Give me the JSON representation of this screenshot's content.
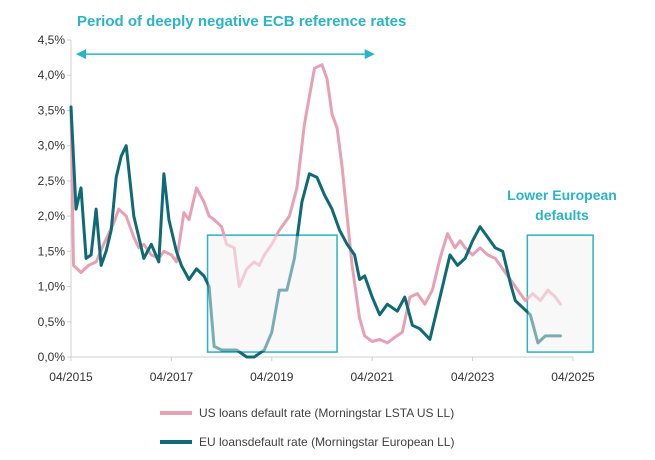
{
  "chart_data": {
    "type": "line",
    "title": "",
    "xlabel": "",
    "ylabel": "",
    "x_tick_labels": [
      "04/2015",
      "04/2017",
      "04/2019",
      "04/2021",
      "04/2023",
      "04/2025"
    ],
    "y_tick_labels": [
      "0,0%",
      "0,5%",
      "1,0%",
      "1,5%",
      "2,0%",
      "2,5%",
      "3,0%",
      "3,5%",
      "4,0%",
      "4,5%"
    ],
    "ylim": [
      0,
      4.5
    ],
    "xlim": [
      2015.25,
      2025.25
    ],
    "legend_position": "bottom",
    "series": [
      {
        "name": "US loans default rate (Morningstar LSTA US LL)",
        "color": "#e8a0b4",
        "x": [
          2015.25,
          2015.3,
          2015.45,
          2015.6,
          2015.75,
          2015.9,
          2016.0,
          2016.1,
          2016.2,
          2016.35,
          2016.5,
          2016.6,
          2016.7,
          2016.85,
          2017.0,
          2017.1,
          2017.25,
          2017.35,
          2017.5,
          2017.6,
          2017.75,
          2017.9,
          2018.0,
          2018.1,
          2018.25,
          2018.35,
          2018.5,
          2018.6,
          2018.75,
          2018.9,
          2019.0,
          2019.1,
          2019.25,
          2019.4,
          2019.6,
          2019.75,
          2019.9,
          2020.0,
          2020.1,
          2020.25,
          2020.35,
          2020.45,
          2020.55,
          2020.65,
          2020.75,
          2020.85,
          2021.0,
          2021.1,
          2021.25,
          2021.4,
          2021.55,
          2021.7,
          2021.85,
          2022.0,
          2022.15,
          2022.3,
          2022.45,
          2022.6,
          2022.75,
          2022.9,
          2023.0,
          2023.1,
          2023.25,
          2023.4,
          2023.55,
          2023.7,
          2023.85,
          2024.0,
          2024.15,
          2024.3,
          2024.45,
          2024.6,
          2024.75,
          2024.9,
          2025.0
        ],
        "values": [
          3.5,
          1.3,
          1.2,
          1.3,
          1.35,
          1.6,
          1.75,
          1.9,
          2.1,
          2.0,
          1.7,
          1.55,
          1.6,
          1.45,
          1.4,
          1.5,
          1.45,
          1.35,
          2.05,
          1.95,
          2.4,
          2.2,
          2.0,
          1.95,
          1.85,
          1.6,
          1.55,
          1.0,
          1.25,
          1.35,
          1.3,
          1.45,
          1.6,
          1.8,
          2.0,
          2.4,
          3.3,
          3.7,
          4.1,
          4.15,
          3.95,
          3.45,
          3.25,
          2.7,
          2.0,
          1.3,
          0.55,
          0.3,
          0.22,
          0.25,
          0.2,
          0.28,
          0.35,
          0.85,
          0.9,
          0.75,
          0.95,
          1.4,
          1.75,
          1.55,
          1.65,
          1.55,
          1.45,
          1.55,
          1.45,
          1.4,
          1.25,
          1.1,
          0.95,
          0.8,
          0.9,
          0.8,
          0.95,
          0.85,
          0.75
        ]
      },
      {
        "name": "EU loansdefault rate (Morningstar European LL)",
        "color": "#0e6b75",
        "x": [
          2015.25,
          2015.35,
          2015.45,
          2015.55,
          2015.65,
          2015.75,
          2015.85,
          2015.95,
          2016.05,
          2016.15,
          2016.25,
          2016.35,
          2016.5,
          2016.6,
          2016.7,
          2016.85,
          2017.0,
          2017.1,
          2017.2,
          2017.35,
          2017.45,
          2017.6,
          2017.75,
          2017.9,
          2018.0,
          2018.1,
          2018.25,
          2018.4,
          2018.55,
          2018.75,
          2018.9,
          2019.1,
          2019.25,
          2019.4,
          2019.55,
          2019.7,
          2019.85,
          2020.0,
          2020.15,
          2020.3,
          2020.45,
          2020.6,
          2020.75,
          2020.9,
          2021.0,
          2021.1,
          2021.25,
          2021.4,
          2021.55,
          2021.75,
          2021.9,
          2022.05,
          2022.2,
          2022.4,
          2022.6,
          2022.8,
          2022.95,
          2023.1,
          2023.25,
          2023.4,
          2023.55,
          2023.7,
          2023.85,
          2024.0,
          2024.1,
          2024.25,
          2024.4,
          2024.55,
          2024.7,
          2024.85,
          2025.0
        ],
        "values": [
          3.55,
          2.1,
          2.4,
          1.4,
          1.45,
          2.1,
          1.3,
          1.5,
          1.8,
          2.55,
          2.85,
          3.0,
          2.0,
          1.7,
          1.4,
          1.6,
          1.35,
          2.6,
          1.95,
          1.5,
          1.3,
          1.1,
          1.25,
          1.15,
          1.0,
          0.15,
          0.1,
          0.1,
          0.1,
          0.0,
          0.0,
          0.1,
          0.35,
          0.95,
          0.95,
          1.4,
          2.2,
          2.6,
          2.55,
          2.3,
          2.1,
          1.8,
          1.6,
          1.45,
          1.1,
          1.15,
          0.85,
          0.6,
          0.75,
          0.65,
          0.85,
          0.45,
          0.4,
          0.25,
          0.85,
          1.45,
          1.3,
          1.4,
          1.65,
          1.85,
          1.7,
          1.55,
          1.5,
          1.05,
          0.8,
          0.7,
          0.6,
          0.2,
          0.3,
          0.3,
          0.3
        ]
      }
    ],
    "annotations": {
      "arrow_label": "Period of deeply negative ECB reference rates",
      "lower_label_line1": "Lower European",
      "lower_label_line2": "defaults",
      "arrow_x_range": [
        2015.35,
        2021.3
      ],
      "arrow_y": 4.3,
      "highlight_boxes": [
        {
          "x0": 2017.97,
          "x1": 2020.55,
          "y0": 0.07,
          "y1": 1.73
        },
        {
          "x0": 2024.34,
          "x1": 2025.65,
          "y0": 0.07,
          "y1": 1.73
        }
      ]
    }
  }
}
